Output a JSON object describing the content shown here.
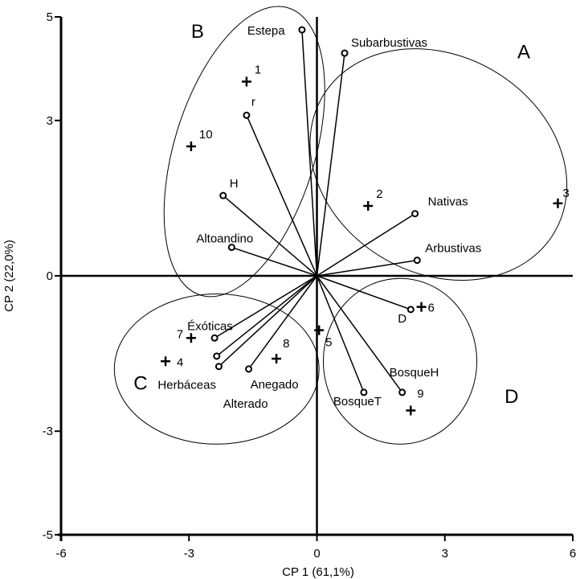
{
  "chart_data": {
    "type": "scatter",
    "subtype": "pca-biplot",
    "xlabel": "CP 1 (61,1%)",
    "ylabel": "CP 2 (22,0%)",
    "xlim": [
      -6,
      6
    ],
    "ylim": [
      -5,
      5
    ],
    "x_ticks": [
      {
        "value": -6,
        "label": "-6"
      },
      {
        "value": -3,
        "label": "-3"
      },
      {
        "value": 0,
        "label": "0"
      },
      {
        "value": 3,
        "label": "3"
      },
      {
        "value": 6,
        "label": "6"
      }
    ],
    "y_ticks": [
      {
        "value": 5,
        "label": "5"
      },
      {
        "value": 3,
        "label": "3"
      },
      {
        "value": 0,
        "label": "0"
      },
      {
        "value": -3,
        "label": "-3"
      },
      {
        "value": -5,
        "label": "-5"
      }
    ],
    "variables": [
      {
        "label": "Estepa",
        "x": -0.35,
        "y": 4.75
      },
      {
        "label": "Subarbustivas",
        "x": 0.65,
        "y": 4.3
      },
      {
        "label": "r",
        "x": -1.65,
        "y": 3.1
      },
      {
        "label": "H",
        "x": -2.2,
        "y": 1.55
      },
      {
        "label": "Altoandino",
        "x": -2.0,
        "y": 0.55
      },
      {
        "label": "Nativas",
        "x": 2.3,
        "y": 1.2
      },
      {
        "label": "Arbustivas",
        "x": 2.35,
        "y": 0.3
      },
      {
        "label": "D",
        "x": 2.2,
        "y": -0.65
      },
      {
        "label": "Éxóticas",
        "x": -2.4,
        "y": -1.2
      },
      {
        "label": "",
        "x": -2.35,
        "y": -1.55
      },
      {
        "label": "Herbáceas",
        "x": -2.3,
        "y": -1.75
      },
      {
        "label": "Anegado",
        "x": -1.6,
        "y": -1.8
      },
      {
        "label": "BosqueH",
        "x": 2.0,
        "y": -2.25
      },
      {
        "label": "BosqueT",
        "x": 1.1,
        "y": -2.25
      }
    ],
    "sites": [
      {
        "label": "1",
        "x": -1.65,
        "y": 3.75
      },
      {
        "label": "10",
        "x": -2.95,
        "y": 2.5
      },
      {
        "label": "2",
        "x": 1.2,
        "y": 1.35
      },
      {
        "label": "3",
        "x": 5.65,
        "y": 1.4
      },
      {
        "label": "6",
        "x": 2.45,
        "y": -0.6
      },
      {
        "label": "5",
        "x": 0.05,
        "y": -1.05
      },
      {
        "label": "8",
        "x": -0.95,
        "y": -1.6
      },
      {
        "label": "7",
        "x": -2.95,
        "y": -1.2
      },
      {
        "label": "4",
        "x": -3.55,
        "y": -1.65
      },
      {
        "label": "9",
        "x": 2.2,
        "y": -2.6
      }
    ],
    "group_labels": [
      {
        "label": "A",
        "x": 4.7,
        "y": 4.2
      },
      {
        "label": "B",
        "x": -2.95,
        "y": 4.6
      },
      {
        "label": "C",
        "x": -4.3,
        "y": -2.2
      },
      {
        "label": "D",
        "x": 4.4,
        "y": -2.45
      }
    ],
    "extra_labels": [
      {
        "label": "Alterado",
        "x": -2.2,
        "y": -2.55
      }
    ],
    "groups": [
      {
        "name": "A",
        "cx": 2.85,
        "cy": 2.15,
        "rx": 3.15,
        "ry": 2.1,
        "angle": 30
      },
      {
        "name": "B",
        "cx": -1.7,
        "cy": 2.4,
        "rx": 1.65,
        "ry": 2.9,
        "angle": 17
      },
      {
        "name": "C",
        "cx": -2.35,
        "cy": -1.8,
        "rx": 2.4,
        "ry": 1.45,
        "angle": 0
      },
      {
        "name": "D",
        "cx": 1.95,
        "cy": -1.65,
        "rx": 1.8,
        "ry": 1.6,
        "angle": 0
      }
    ]
  }
}
